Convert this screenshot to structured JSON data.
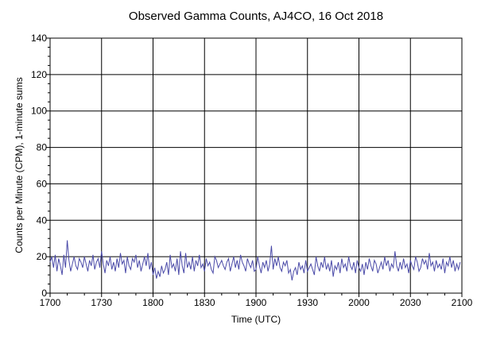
{
  "chart_data": {
    "type": "line",
    "title": "Observed Gamma Counts, AJ4CO, 16 Oct 2018",
    "xlabel": "Time (UTC)",
    "ylabel": "Counts per Minute (CPM), 1-minute sums",
    "x_tick_labels": [
      "1700",
      "1730",
      "1800",
      "1830",
      "1900",
      "1930",
      "2000",
      "2030",
      "2100"
    ],
    "y_tick_labels": [
      "0",
      "20",
      "40",
      "60",
      "80",
      "100",
      "120",
      "140"
    ],
    "y_ticks": [
      0,
      20,
      40,
      60,
      80,
      100,
      120,
      140
    ],
    "xlim_minutes_after_1700": [
      0,
      240
    ],
    "ylim": [
      0,
      140
    ],
    "grid": true,
    "series_color": "#4a4aa8",
    "x_start_label": "1700",
    "sample_interval_minutes": 1,
    "values": [
      17,
      20,
      14,
      21,
      12,
      19,
      15,
      10,
      21,
      14,
      29,
      18,
      12,
      16,
      20,
      15,
      13,
      19,
      17,
      14,
      20,
      16,
      12,
      18,
      15,
      21,
      13,
      17,
      19,
      14,
      23,
      16,
      11,
      18,
      15,
      20,
      13,
      17,
      12,
      19,
      14,
      22,
      16,
      18,
      11,
      20,
      15,
      13,
      19,
      17,
      21,
      14,
      18,
      12,
      16,
      20,
      15,
      22,
      13,
      17,
      10,
      14,
      8,
      12,
      9,
      15,
      11,
      13,
      17,
      10,
      21,
      14,
      16,
      12,
      19,
      10,
      23,
      15,
      11,
      22,
      14,
      17,
      13,
      20,
      12,
      18,
      15,
      21,
      14,
      16,
      12,
      19,
      15,
      17,
      13,
      11,
      20,
      18,
      14,
      16,
      18,
      15,
      13,
      17,
      19,
      12,
      16,
      20,
      14,
      18,
      13,
      21,
      17,
      15,
      12,
      19,
      16,
      14,
      18,
      12,
      13,
      20,
      15,
      11,
      17,
      14,
      18,
      12,
      16,
      26,
      13,
      19,
      15,
      20,
      14,
      12,
      17,
      15,
      18,
      11,
      13,
      7,
      12,
      14,
      10,
      17,
      13,
      15,
      11,
      18,
      12,
      14,
      16,
      13,
      10,
      20,
      15,
      12,
      17,
      14,
      20,
      13,
      16,
      12,
      18,
      9,
      15,
      13,
      17,
      11,
      19,
      14,
      16,
      12,
      20,
      15,
      13,
      17,
      11,
      18,
      14,
      12,
      16,
      10,
      17,
      13,
      19,
      15,
      12,
      18,
      16,
      11,
      14,
      17,
      13,
      20,
      15,
      18,
      12,
      16,
      14,
      23,
      15,
      12,
      17,
      13,
      19,
      14,
      16,
      11,
      18,
      15,
      13,
      20,
      17,
      12,
      14,
      19,
      16,
      18,
      13,
      22,
      15,
      17,
      12,
      18,
      14,
      16,
      13,
      19,
      11,
      17,
      15,
      20,
      14,
      18,
      12,
      16,
      13,
      17
    ]
  }
}
